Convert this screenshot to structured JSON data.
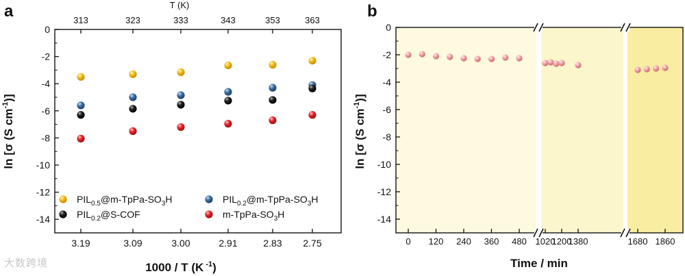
{
  "watermark": "大数跨境",
  "chart_data": [
    {
      "panel": "a",
      "type": "scatter",
      "xlabel": "1000 / T (K",
      "xlabel_sup": " -1",
      "xlabel_end": ")",
      "x_top_label": "T (K)",
      "ylabel_main": "ln [σ (S cm",
      "ylabel_sup": "-1",
      "ylabel_end": ")]",
      "ylim": [
        -15,
        0
      ],
      "yticks": [
        0,
        -2,
        -4,
        -6,
        -8,
        -10,
        -12,
        -14
      ],
      "ytick_labels": [
        "0",
        "-2",
        "-4",
        "-6",
        "-8",
        "-10",
        "-12",
        "-14"
      ],
      "x_bottom_ticks": [
        "3.19",
        "3.09",
        "3.00",
        "2.91",
        "2.83",
        "2.75"
      ],
      "x_top_ticks": [
        "313",
        "323",
        "333",
        "343",
        "353",
        "363"
      ],
      "series": [
        {
          "name": "PIL0.5@m-TpPa-SO3H",
          "legend": [
            [
              "PIL",
              false
            ],
            [
              "0.5",
              true
            ],
            [
              "@m-TpPa-SO",
              false
            ],
            [
              "3",
              true
            ],
            [
              "H",
              false
            ]
          ],
          "color": "#f2bf1d",
          "values": [
            -3.5,
            -3.3,
            -3.15,
            -2.65,
            -2.6,
            -2.3
          ]
        },
        {
          "name": "PIL0.2@m-TpPa-SO3H",
          "legend": [
            [
              "PIL",
              false
            ],
            [
              "0.2",
              true
            ],
            [
              "@m-TpPa-SO",
              false
            ],
            [
              "3",
              true
            ],
            [
              "H",
              false
            ]
          ],
          "color": "#3d6fa3",
          "values": [
            -5.6,
            -5.0,
            -4.85,
            -4.6,
            -4.3,
            -4.1
          ]
        },
        {
          "name": "PIL0.2@S-COF",
          "legend": [
            [
              "PIL",
              false
            ],
            [
              "0.2",
              true
            ],
            [
              "@S-COF",
              false
            ]
          ],
          "color": "#111111",
          "values": [
            -6.3,
            -5.85,
            -5.55,
            -5.25,
            -5.2,
            -4.35
          ]
        },
        {
          "name": "m-TpPa-SO3H",
          "legend": [
            [
              "m-TpPa-SO",
              false
            ],
            [
              "3",
              true
            ],
            [
              "H",
              false
            ]
          ],
          "color": "#e0262c",
          "values": [
            -8.05,
            -7.5,
            -7.2,
            -6.95,
            -6.7,
            -6.3
          ]
        }
      ]
    },
    {
      "panel": "b",
      "type": "scatter",
      "xlabel": "Time / min",
      "ylabel_main": "ln [σ (S cm",
      "ylabel_sup": "-1",
      "ylabel_end": ")]",
      "ylim": [
        -15,
        0
      ],
      "yticks": [
        0,
        -2,
        -4,
        -6,
        -8,
        -10,
        -12,
        -14
      ],
      "ytick_labels": [
        "0",
        "-2",
        "-4",
        "-6",
        "-8",
        "-10",
        "-12",
        "-14"
      ],
      "color": "#f2a0a4",
      "segments": [
        {
          "xrange": [
            0,
            540
          ],
          "ticks": [
            0,
            120,
            240,
            360,
            480
          ],
          "tick_labels": [
            "0",
            "120",
            "240",
            "360",
            "480"
          ],
          "x": [
            0,
            60,
            120,
            180,
            240,
            300,
            360,
            420,
            480
          ],
          "y": [
            -2.0,
            -1.95,
            -2.1,
            -2.15,
            -2.25,
            -2.3,
            -2.3,
            -2.2,
            -2.25
          ]
        },
        {
          "xrange": [
            1000,
            1420
          ],
          "ticks": [
            1020,
            1200,
            1380
          ],
          "tick_labels": [
            "1020",
            "1200",
            "1380"
          ],
          "x": [
            1020,
            1080,
            1140,
            1200,
            1380
          ],
          "y": [
            -2.6,
            -2.55,
            -2.65,
            -2.6,
            -2.75
          ]
        },
        {
          "xrange": [
            1640,
            1880
          ],
          "ticks": [
            1680,
            1860
          ],
          "tick_labels": [
            "1680",
            "1860"
          ],
          "x": [
            1680,
            1740,
            1800,
            1860
          ],
          "y": [
            -3.1,
            -3.05,
            -3.0,
            -2.95
          ]
        }
      ]
    }
  ]
}
